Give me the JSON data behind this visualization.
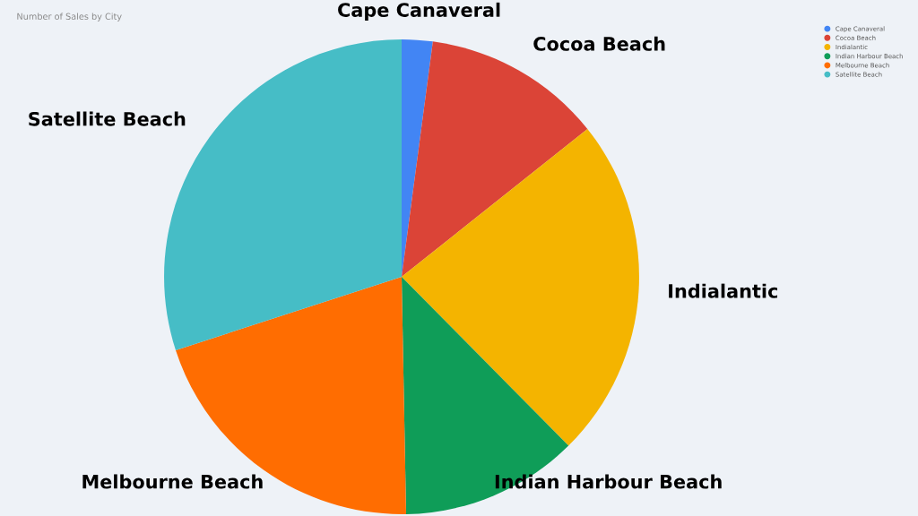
{
  "chart_data": {
    "type": "pie",
    "title": "Number of Sales by City",
    "categories": [
      "Cape Canaveral",
      "Cocoa Beach",
      "Indialantic",
      "Indian Harbour Beach",
      "Melbourne Beach",
      "Satellite Beach"
    ],
    "values": [
      2.1,
      12.2,
      23.3,
      12.1,
      20.3,
      30.0
    ],
    "colors": [
      "#4285f4",
      "#db4437",
      "#f4b400",
      "#0f9d58",
      "#ff6d01",
      "#46bdc6"
    ],
    "legend": "top right"
  }
}
